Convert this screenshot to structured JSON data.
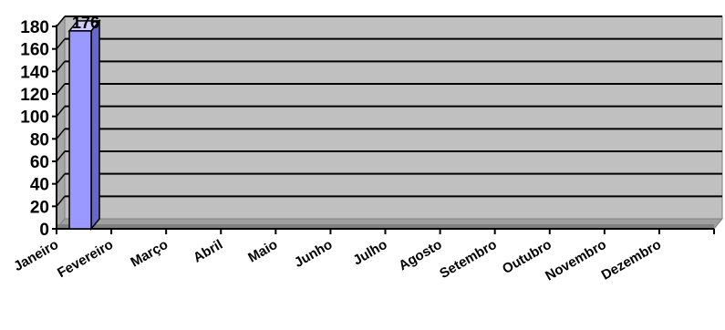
{
  "chart_data": {
    "type": "bar",
    "categories": [
      "Janeiro",
      "Fevereiro",
      "Março",
      "Abril",
      "Maio",
      "Junho",
      "Julho",
      "Agosto",
      "Setembro",
      "Outubro",
      "Novembro",
      "Dezembro"
    ],
    "values": [
      176,
      null,
      null,
      null,
      null,
      null,
      null,
      null,
      null,
      null,
      null,
      null
    ],
    "data_labels": [
      "176",
      "",
      "",
      "",
      "",
      "",
      "",
      "",
      "",
      "",
      "",
      ""
    ],
    "yticks": [
      "0",
      "20",
      "40",
      "60",
      "80",
      "100",
      "120",
      "140",
      "160",
      "180"
    ],
    "ylim": [
      0,
      180
    ],
    "grid": true,
    "legend": "none",
    "style": "3d",
    "colors": {
      "plot_back": "#c0c0c0",
      "plot_floor": "#808080",
      "bar_front": "#9999ff",
      "bar_top": "#ccccff",
      "bar_side": "#6666cc",
      "grid": "#000000"
    }
  }
}
